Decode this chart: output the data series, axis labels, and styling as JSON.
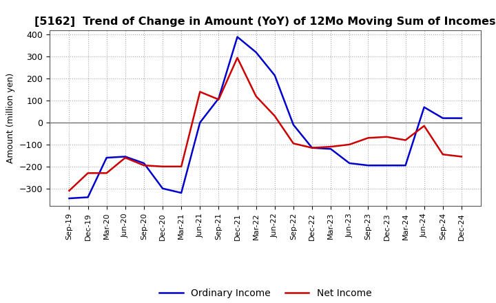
{
  "title": "[5162]  Trend of Change in Amount (YoY) of 12Mo Moving Sum of Incomes",
  "ylabel": "Amount (million yen)",
  "background_color": "#ffffff",
  "grid_color": "#aaaaaa",
  "x_labels": [
    "Sep-19",
    "Dec-19",
    "Mar-20",
    "Jun-20",
    "Sep-20",
    "Dec-20",
    "Mar-21",
    "Jun-21",
    "Sep-21",
    "Dec-21",
    "Mar-22",
    "Jun-22",
    "Sep-22",
    "Dec-22",
    "Mar-23",
    "Jun-23",
    "Sep-23",
    "Dec-23",
    "Mar-24",
    "Jun-24",
    "Sep-24",
    "Dec-24"
  ],
  "ordinary_income": [
    -345,
    -340,
    -160,
    -155,
    -185,
    -300,
    -320,
    0,
    110,
    390,
    320,
    215,
    -10,
    -115,
    -120,
    -185,
    -195,
    -195,
    -195,
    70,
    20,
    20
  ],
  "net_income": [
    -310,
    -230,
    -230,
    -160,
    -195,
    -200,
    -200,
    140,
    105,
    295,
    120,
    30,
    -95,
    -115,
    -110,
    -100,
    -70,
    -65,
    -80,
    -15,
    -145,
    -155
  ],
  "ordinary_income_color": "#0000cc",
  "net_income_color": "#cc0000",
  "ylim": [
    -380,
    420
  ],
  "yticks": [
    -300,
    -200,
    -100,
    0,
    100,
    200,
    300,
    400
  ],
  "line_width": 1.8,
  "title_fontsize": 11.5,
  "legend_fontsize": 10,
  "axis_label_fontsize": 9,
  "tick_fontsize": 9
}
